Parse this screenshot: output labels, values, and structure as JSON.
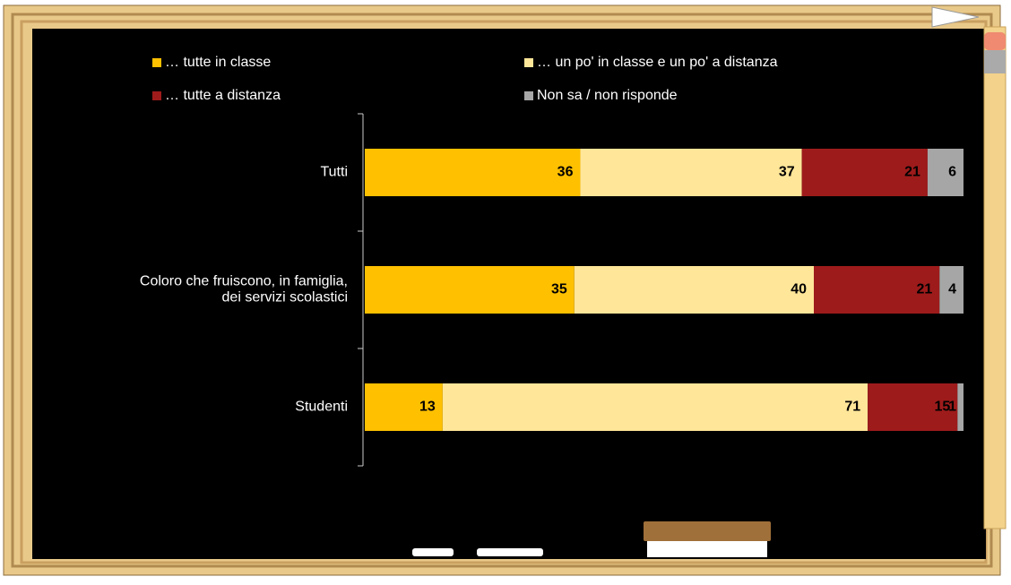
{
  "chart_data": {
    "type": "stacked-barh",
    "categories": [
      "Tutti",
      "Coloro che fruiscono, in famiglia,\ndei servizi scolastici",
      "Studenti"
    ],
    "series": [
      {
        "name": "… tutte in classe",
        "color": "#FFC000",
        "values": [
          36,
          35,
          13
        ]
      },
      {
        "name": "… un po' in classe e un po' a distanza",
        "color": "#FFE699",
        "values": [
          37,
          40,
          71
        ]
      },
      {
        "name": "… tutte a distanza",
        "color": "#9E1B1B",
        "values": [
          21,
          21,
          15
        ]
      },
      {
        "name": "Non sa / non risponde",
        "color": "#A6A6A6",
        "values": [
          6,
          4,
          1
        ]
      }
    ],
    "xlim": [
      0,
      100
    ]
  }
}
